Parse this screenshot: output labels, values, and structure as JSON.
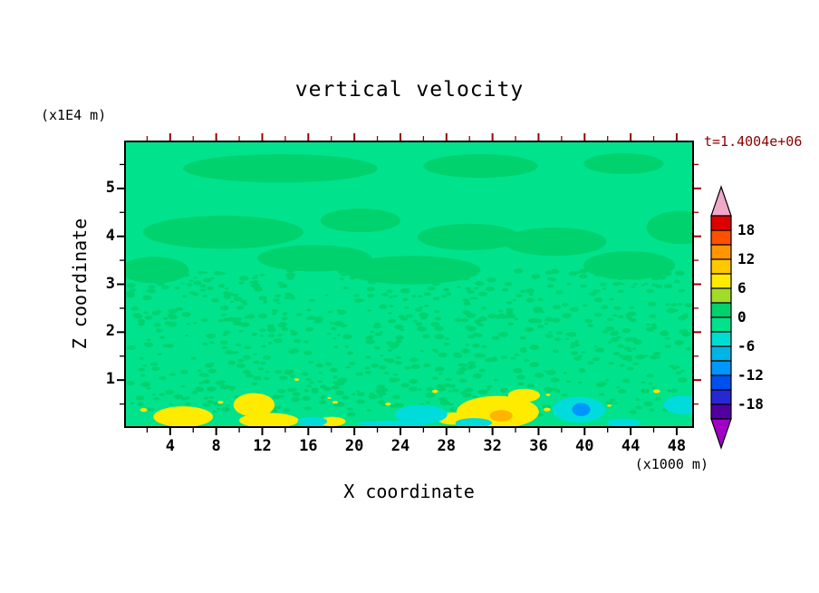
{
  "chart_data": {
    "type": "heatmap",
    "title": "vertical velocity",
    "timestamp": "t=1.4004e+06",
    "timestamp_color": "#8B0000",
    "xlabel": "X coordinate",
    "x_unit": "(x1000 m)",
    "ylabel": "Z coordinate",
    "y_unit": "(x1E4 m)",
    "xlim": [
      0,
      49.5
    ],
    "ylim": [
      0,
      6
    ],
    "x_ticks": [
      4,
      8,
      12,
      16,
      20,
      24,
      28,
      32,
      36,
      40,
      44,
      48
    ],
    "x_minor_step": 2,
    "y_ticks": [
      1,
      2,
      3,
      4,
      5
    ],
    "y_minor_step": 0.5,
    "contour_interval": 3,
    "frame": {
      "color": "#000000",
      "tick_color_bottom_left": "#000000",
      "tick_color_top_right": "#990000"
    },
    "colorbar": {
      "tick_labels": [
        "18",
        "12",
        "6",
        "0",
        "-6",
        "-12",
        "-18"
      ],
      "value_range": [
        -21,
        21
      ],
      "segment_colors": [
        "#DC0000",
        "#FF5000",
        "#FF9600",
        "#FFC800",
        "#FFEB00",
        "#A0DC28",
        "#00D26E",
        "#00E28C",
        "#00DCD2",
        "#00B4E6",
        "#0096FF",
        "#0050F0",
        "#2828D2",
        "#5000A0"
      ],
      "over_arrow_color": "#F0A8C8",
      "under_arrow_color": "#A000C8",
      "outline_color": "#000000"
    },
    "field": {
      "background_color": "#00E28C",
      "patch_color": "#00D26E",
      "patches": [
        {
          "x": 13.5,
          "z": 5.45,
          "rx": 8.5,
          "rz": 0.3
        },
        {
          "x": 31.0,
          "z": 5.5,
          "rx": 5.0,
          "rz": 0.25
        },
        {
          "x": 43.5,
          "z": 5.55,
          "rx": 3.5,
          "rz": 0.22
        },
        {
          "x": 8.5,
          "z": 4.1,
          "rx": 7.0,
          "rz": 0.35
        },
        {
          "x": 20.5,
          "z": 4.35,
          "rx": 3.5,
          "rz": 0.25
        },
        {
          "x": 30.0,
          "z": 4.0,
          "rx": 4.5,
          "rz": 0.28
        },
        {
          "x": 37.5,
          "z": 3.9,
          "rx": 4.5,
          "rz": 0.3
        },
        {
          "x": 48.5,
          "z": 4.2,
          "rx": 3.0,
          "rz": 0.35
        },
        {
          "x": 16.5,
          "z": 3.55,
          "rx": 5.0,
          "rz": 0.28
        },
        {
          "x": 25.0,
          "z": 3.3,
          "rx": 6.0,
          "rz": 0.3
        },
        {
          "x": 2.5,
          "z": 3.3,
          "rx": 3.0,
          "rz": 0.28
        },
        {
          "x": 44.0,
          "z": 3.4,
          "rx": 4.0,
          "rz": 0.3
        }
      ],
      "surface_features": [
        {
          "x": 5.0,
          "z": 0.2,
          "rx": 2.6,
          "rz": 0.22,
          "color": "#FFEB00"
        },
        {
          "x": 11.2,
          "z": 0.45,
          "rx": 1.8,
          "rz": 0.25,
          "color": "#FFEB00"
        },
        {
          "x": 12.5,
          "z": 0.12,
          "rx": 2.6,
          "rz": 0.16,
          "color": "#FFEB00"
        },
        {
          "x": 32.5,
          "z": 0.3,
          "rx": 3.6,
          "rz": 0.34,
          "color": "#FFEB00"
        },
        {
          "x": 34.8,
          "z": 0.65,
          "rx": 1.4,
          "rz": 0.14,
          "color": "#FFEB00"
        },
        {
          "x": 28.6,
          "z": 0.16,
          "rx": 1.4,
          "rz": 0.13,
          "color": "#FFEB00"
        },
        {
          "x": 18.0,
          "z": 0.1,
          "rx": 1.2,
          "rz": 0.1,
          "color": "#FFEB00"
        },
        {
          "x": 32.8,
          "z": 0.22,
          "rx": 1.0,
          "rz": 0.12,
          "color": "#FFB400"
        },
        {
          "x": 25.8,
          "z": 0.25,
          "rx": 2.3,
          "rz": 0.2,
          "color": "#00DCDC"
        },
        {
          "x": 30.4,
          "z": 0.07,
          "rx": 1.6,
          "rz": 0.1,
          "color": "#00DCDC"
        },
        {
          "x": 39.6,
          "z": 0.35,
          "rx": 2.3,
          "rz": 0.27,
          "color": "#00DCDC"
        },
        {
          "x": 48.8,
          "z": 0.45,
          "rx": 1.8,
          "rz": 0.2,
          "color": "#00DCDC"
        },
        {
          "x": 16.3,
          "z": 0.1,
          "rx": 1.3,
          "rz": 0.1,
          "color": "#00DCDC"
        },
        {
          "x": 23.3,
          "z": 0.05,
          "rx": 3.0,
          "rz": 0.07,
          "color": "#00DCDC"
        },
        {
          "x": 43.5,
          "z": 0.08,
          "rx": 1.5,
          "rz": 0.08,
          "color": "#00DCDC"
        },
        {
          "x": 39.8,
          "z": 0.35,
          "rx": 0.8,
          "rz": 0.14,
          "color": "#0096FF"
        }
      ],
      "speckle": {
        "x_range": [
          0.3,
          49.2
        ],
        "z_range": [
          0.2,
          3.3
        ],
        "count": 800,
        "radius_px": [
          1.2,
          3.2
        ],
        "seed": 42
      },
      "surface_speckle": {
        "x_range": [
          1,
          48
        ],
        "z_range": [
          0.3,
          1.0
        ],
        "count": 14,
        "radius_px": [
          1.2,
          2.4
        ],
        "seed": 7,
        "color": "#FFE400"
      }
    }
  }
}
